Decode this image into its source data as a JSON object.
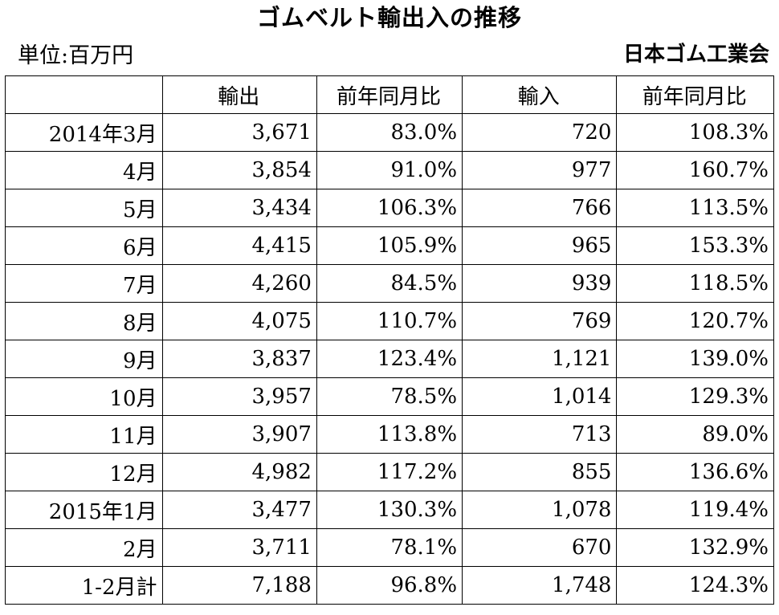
{
  "title": "ゴムベルト輸出入の推移",
  "unit": "単位:百万円",
  "source": "日本ゴム工業会",
  "table": {
    "headers": [
      "",
      "輸出",
      "前年同月比",
      "輸入",
      "前年同月比"
    ],
    "rows": [
      [
        "2014年3月",
        "3,671",
        "83.0%",
        "720",
        "108.3%"
      ],
      [
        "4月",
        "3,854",
        "91.0%",
        "977",
        "160.7%"
      ],
      [
        "5月",
        "3,434",
        "106.3%",
        "766",
        "113.5%"
      ],
      [
        "6月",
        "4,415",
        "105.9%",
        "965",
        "153.3%"
      ],
      [
        "7月",
        "4,260",
        "84.5%",
        "939",
        "118.5%"
      ],
      [
        "8月",
        "4,075",
        "110.7%",
        "769",
        "120.7%"
      ],
      [
        "9月",
        "3,837",
        "123.4%",
        "1,121",
        "139.0%"
      ],
      [
        "10月",
        "3,957",
        "78.5%",
        "1,014",
        "129.3%"
      ],
      [
        "11月",
        "3,907",
        "113.8%",
        "713",
        "89.0%"
      ],
      [
        "12月",
        "4,982",
        "117.2%",
        "855",
        "136.6%"
      ],
      [
        "2015年1月",
        "3,477",
        "130.3%",
        "1,078",
        "119.4%"
      ],
      [
        "2月",
        "3,711",
        "78.1%",
        "670",
        "132.9%"
      ],
      [
        "1-2月計",
        "7,188",
        "96.8%",
        "1,748",
        "124.3%"
      ]
    ]
  }
}
